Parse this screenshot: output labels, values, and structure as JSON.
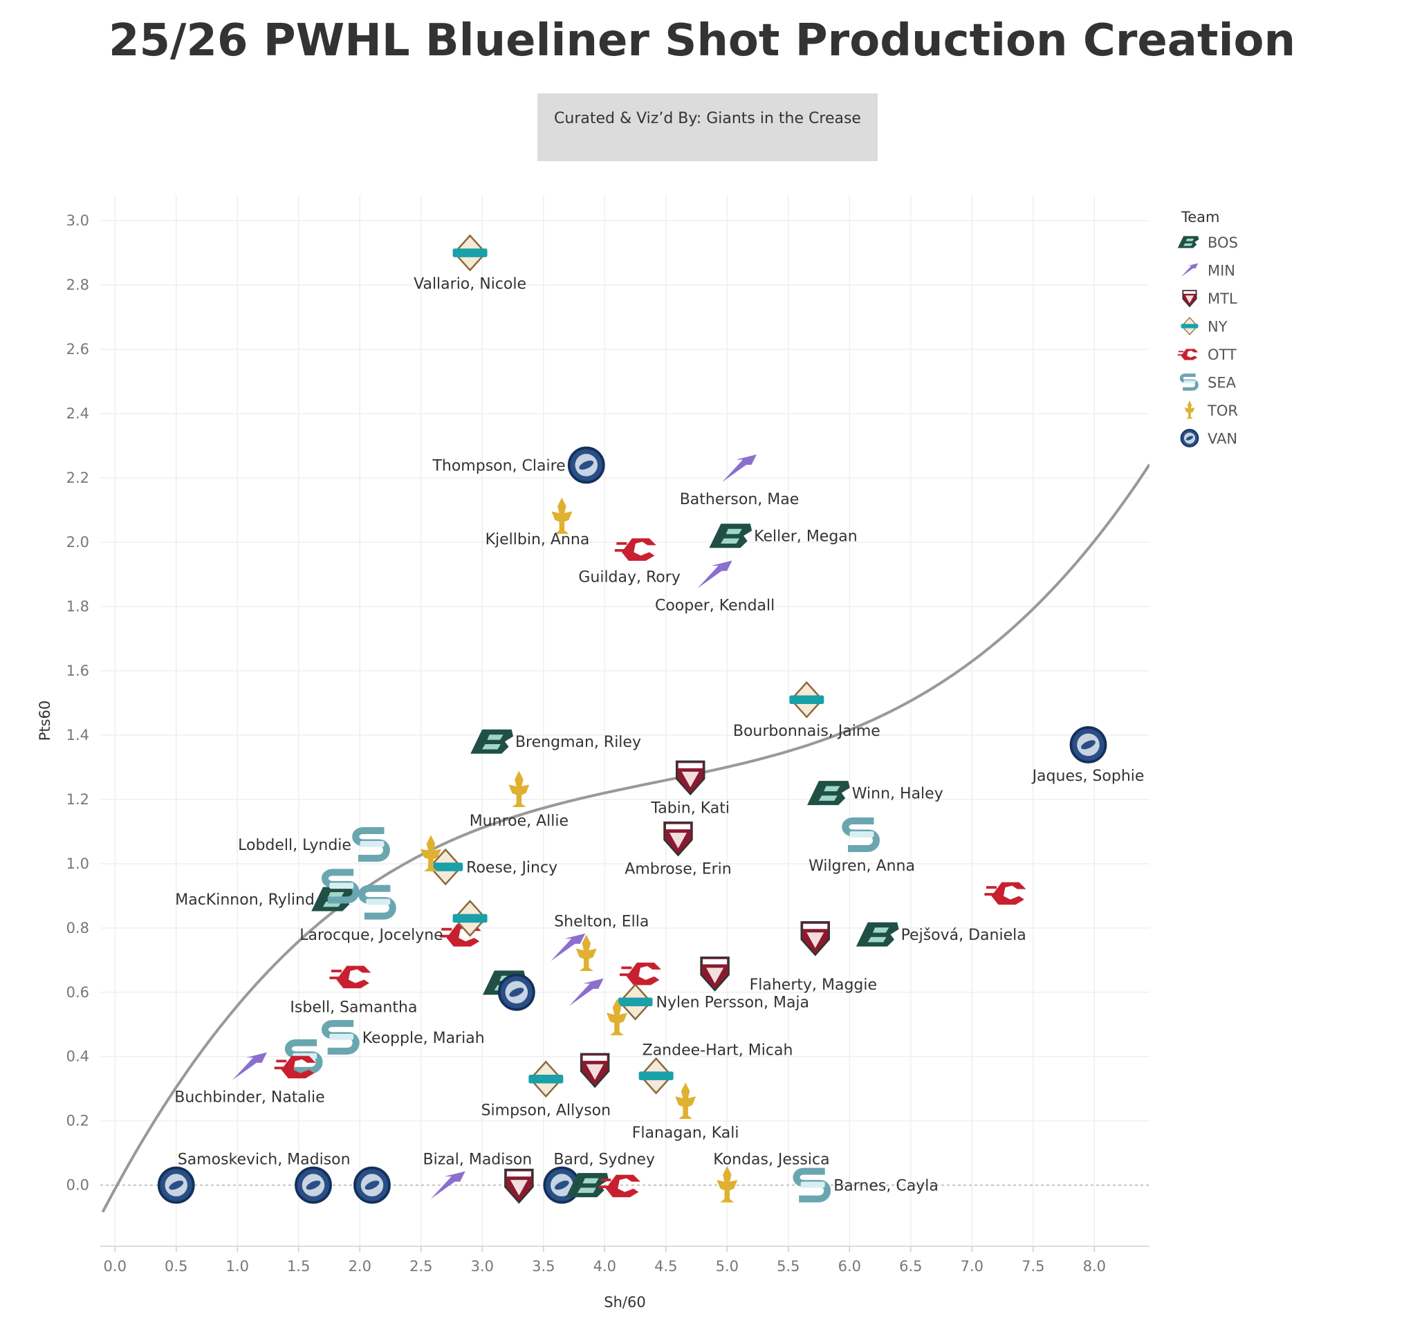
{
  "title": "25/26 PWHL Blueliner Shot Production Creation",
  "credit": "Curated & Viz’d By: Giants in the Crease",
  "team_colors": {
    "BOS": "#1f4f45",
    "MIN": "#8a6fcf",
    "MTL": "#8a1a2f",
    "NY": "#19a0a8",
    "OTT": "#c8202f",
    "SEA": "#6aa6b0",
    "TOR": "#e0b030",
    "VAN": "#2a4f86"
  },
  "chart_data": {
    "type": "scatter",
    "title": "25/26 PWHL Blueliner Shot Production Creation",
    "xlabel": "Sh/60",
    "ylabel": "Pts60",
    "xlim": [
      -0.12,
      8.45
    ],
    "ylim": [
      -0.19,
      3.08
    ],
    "xticks": [
      "0.0",
      "0.5",
      "1.0",
      "1.5",
      "2.0",
      "2.5",
      "3.0",
      "3.5",
      "4.0",
      "4.5",
      "5.0",
      "5.5",
      "6.0",
      "6.5",
      "7.0",
      "7.5",
      "8.0"
    ],
    "yticks": [
      "0.0",
      "0.2",
      "0.4",
      "0.6",
      "0.8",
      "1.0",
      "1.2",
      "1.4",
      "1.6",
      "1.8",
      "2.0",
      "2.2",
      "2.4",
      "2.6",
      "2.8",
      "3.0"
    ],
    "grid": true,
    "legend": {
      "title": "Team",
      "position": "right",
      "entries": [
        "BOS",
        "MIN",
        "MTL",
        "NY",
        "OTT",
        "SEA",
        "TOR",
        "VAN"
      ]
    },
    "trend_line": {
      "type": "cubic",
      "coefficients": [
        -0.012,
        0.7,
        -0.14,
        0.0105
      ]
    },
    "points": [
      {
        "label": "Vallario, Nicole",
        "team": "NY",
        "x": 2.9,
        "y": 2.9,
        "label_pos": "below"
      },
      {
        "label": "Thompson, Claire",
        "team": "VAN",
        "x": 3.85,
        "y": 2.24,
        "label_pos": "left"
      },
      {
        "label": "Batherson, Mae",
        "team": "MIN",
        "x": 5.1,
        "y": 2.23,
        "label_pos": "below"
      },
      {
        "label": "Kjellbin, Anna",
        "team": "TOR",
        "x": 3.65,
        "y": 2.08,
        "label_pos": "left-below"
      },
      {
        "label": "Guilday, Rory",
        "team": "OTT",
        "x": 4.28,
        "y": 1.98,
        "label_pos": "below-left"
      },
      {
        "label": "Keller, Megan",
        "team": "BOS",
        "x": 5.05,
        "y": 2.02,
        "label_pos": "right"
      },
      {
        "label": "Cooper, Kendall",
        "team": "MIN",
        "x": 4.9,
        "y": 1.9,
        "label_pos": "below"
      },
      {
        "label": "Bourbonnais, Jaime",
        "team": "NY",
        "x": 5.65,
        "y": 1.51,
        "label_pos": "below"
      },
      {
        "label": "Jaques, Sophie",
        "team": "VAN",
        "x": 7.95,
        "y": 1.37,
        "label_pos": "below"
      },
      {
        "label": "Brengman, Riley",
        "team": "BOS",
        "x": 3.1,
        "y": 1.38,
        "label_pos": "right"
      },
      {
        "label": "Tabin, Kati",
        "team": "MTL",
        "x": 4.7,
        "y": 1.27,
        "label_pos": "below"
      },
      {
        "label": "Winn, Haley",
        "team": "BOS",
        "x": 5.85,
        "y": 1.22,
        "label_pos": "right"
      },
      {
        "label": "Munroe, Allie",
        "team": "TOR",
        "x": 3.3,
        "y": 1.23,
        "label_pos": "below"
      },
      {
        "label": "Lobdell, Lyndie",
        "team": "SEA",
        "x": 2.1,
        "y": 1.06,
        "label_pos": "left"
      },
      {
        "label": "Wilgren, Anna",
        "team": "SEA",
        "x": 6.1,
        "y": 1.09,
        "label_pos": "below"
      },
      {
        "label": "Ambrose, Erin",
        "team": "MTL",
        "x": 4.6,
        "y": 1.08,
        "label_pos": "below"
      },
      {
        "label": "Roese, Jincy",
        "team": "NY",
        "x": 2.7,
        "y": 0.99,
        "label_pos": "right"
      },
      {
        "label": "",
        "team": "TOR",
        "x": 2.58,
        "y": 1.03,
        "label_pos": "none"
      },
      {
        "label": "",
        "team": "OTT",
        "x": 7.3,
        "y": 0.91,
        "label_pos": "none"
      },
      {
        "label": "MacKinnon, Rylind",
        "team": "BOS",
        "x": 1.8,
        "y": 0.89,
        "label_pos": "left"
      },
      {
        "label": "",
        "team": "SEA",
        "x": 1.85,
        "y": 0.93,
        "label_pos": "none"
      },
      {
        "label": "",
        "team": "SEA",
        "x": 2.15,
        "y": 0.88,
        "label_pos": "none"
      },
      {
        "label": "Larocque, Jocelyne",
        "team": "OTT",
        "x": 2.85,
        "y": 0.78,
        "label_pos": "left"
      },
      {
        "label": "",
        "team": "NY",
        "x": 2.9,
        "y": 0.83,
        "label_pos": "none"
      },
      {
        "label": "Shelton, Ella",
        "team": "MIN",
        "x": 3.7,
        "y": 0.74,
        "label_pos": "above-right"
      },
      {
        "label": "",
        "team": "TOR",
        "x": 3.85,
        "y": 0.72,
        "label_pos": "none"
      },
      {
        "label": "Pejšová, Daniela",
        "team": "BOS",
        "x": 6.25,
        "y": 0.78,
        "label_pos": "right"
      },
      {
        "label": "",
        "team": "MTL",
        "x": 5.72,
        "y": 0.77,
        "label_pos": "none"
      },
      {
        "label": "Flaherty, Maggie",
        "team": "MTL",
        "x": 4.9,
        "y": 0.66,
        "label_pos": "right-below"
      },
      {
        "label": "",
        "team": "OTT",
        "x": 4.32,
        "y": 0.66,
        "label_pos": "none"
      },
      {
        "label": "Isbell, Samantha",
        "team": "OTT",
        "x": 1.95,
        "y": 0.65,
        "label_pos": "below"
      },
      {
        "label": "",
        "team": "BOS",
        "x": 3.2,
        "y": 0.63,
        "label_pos": "none"
      },
      {
        "label": "",
        "team": "VAN",
        "x": 3.28,
        "y": 0.6,
        "label_pos": "none"
      },
      {
        "label": "",
        "team": "MIN",
        "x": 3.85,
        "y": 0.6,
        "label_pos": "none"
      },
      {
        "label": "Nylen Persson, Maja",
        "team": "NY",
        "x": 4.25,
        "y": 0.57,
        "label_pos": "right"
      },
      {
        "label": "",
        "team": "TOR",
        "x": 4.1,
        "y": 0.52,
        "label_pos": "none"
      },
      {
        "label": "Keopple, Mariah",
        "team": "SEA",
        "x": 1.85,
        "y": 0.46,
        "label_pos": "right"
      },
      {
        "label": "Zandee-Hart, Micah",
        "team": "NY",
        "x": 4.42,
        "y": 0.34,
        "label_pos": "above-right"
      },
      {
        "label": "",
        "team": "MTL",
        "x": 3.92,
        "y": 0.36,
        "label_pos": "none"
      },
      {
        "label": "Buchbinder, Natalie",
        "team": "MIN",
        "x": 1.1,
        "y": 0.37,
        "label_pos": "below"
      },
      {
        "label": "",
        "team": "SEA",
        "x": 1.55,
        "y": 0.4,
        "label_pos": "none"
      },
      {
        "label": "",
        "team": "OTT",
        "x": 1.5,
        "y": 0.37,
        "label_pos": "none"
      },
      {
        "label": "Simpson, Allyson",
        "team": "NY",
        "x": 3.52,
        "y": 0.33,
        "label_pos": "below"
      },
      {
        "label": "Flanagan, Kali",
        "team": "TOR",
        "x": 4.66,
        "y": 0.26,
        "label_pos": "below"
      },
      {
        "label": "Samoskevich, Madison",
        "team": "VAN",
        "x": 0.5,
        "y": 0.0,
        "label_pos": "above-right"
      },
      {
        "label": "",
        "team": "VAN",
        "x": 1.62,
        "y": 0.0,
        "label_pos": "none"
      },
      {
        "label": "",
        "team": "VAN",
        "x": 2.1,
        "y": 0.0,
        "label_pos": "none"
      },
      {
        "label": "",
        "team": "MIN",
        "x": 2.72,
        "y": 0.0,
        "label_pos": "none"
      },
      {
        "label": "Bizal, Madison",
        "team": "MTL",
        "x": 3.3,
        "y": 0.0,
        "label_pos": "above"
      },
      {
        "label": "Bard, Sydney",
        "team": "VAN",
        "x": 3.65,
        "y": 0.0,
        "label_pos": "above-right"
      },
      {
        "label": "",
        "team": "BOS",
        "x": 3.88,
        "y": 0.0,
        "label_pos": "none"
      },
      {
        "label": "",
        "team": "OTT",
        "x": 4.15,
        "y": 0.0,
        "label_pos": "none"
      },
      {
        "label": "Kondas, Jessica",
        "team": "TOR",
        "x": 5.0,
        "y": 0.0,
        "label_pos": "above-right"
      },
      {
        "label": "Barnes, Cayla",
        "team": "SEA",
        "x": 5.7,
        "y": 0.0,
        "label_pos": "right"
      }
    ]
  }
}
